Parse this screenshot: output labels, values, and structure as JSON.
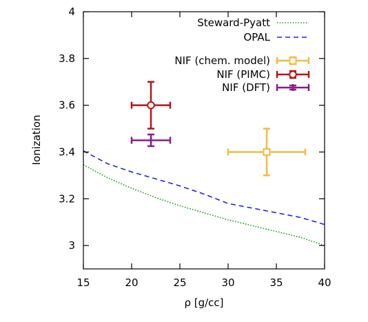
{
  "chart_data": {
    "type": "line",
    "title": "",
    "xlabel": "ρ [g/cc]",
    "ylabel": "Ionization",
    "xlim": [
      15,
      40
    ],
    "ylim": [
      2.9,
      4.0
    ],
    "x_ticks": [
      "15",
      "20",
      "25",
      "30",
      "35",
      "40"
    ],
    "y_ticks": [
      "3",
      "3.2",
      "3.4",
      "3.6",
      "3.8",
      "4"
    ],
    "x_tick_values": [
      15,
      20,
      25,
      30,
      35,
      40
    ],
    "y_tick_values": [
      3.0,
      3.2,
      3.4,
      3.6,
      3.8,
      4.0
    ],
    "grid": false,
    "legend_position": "top-right",
    "lines": [
      {
        "name": "Steward-Pyatt",
        "color": "#1a9a1a",
        "dash": "dotted",
        "x": [
          15,
          17.5,
          20,
          22.5,
          25,
          27.5,
          30,
          32.5,
          35,
          37.5,
          40
        ],
        "y": [
          3.345,
          3.29,
          3.245,
          3.205,
          3.17,
          3.14,
          3.11,
          3.085,
          3.06,
          3.035,
          3.0
        ]
      },
      {
        "name": "OPAL",
        "color": "#2222dd",
        "dash": "dashed",
        "x": [
          15,
          17.5,
          20,
          22.5,
          25,
          27.5,
          30,
          32.5,
          35,
          37.5,
          40
        ],
        "y": [
          3.405,
          3.35,
          3.315,
          3.285,
          3.255,
          3.22,
          3.18,
          3.16,
          3.14,
          3.12,
          3.09
        ]
      }
    ],
    "points": [
      {
        "name": "NIF (chem. model)",
        "color": "#f5b942",
        "marker": "square",
        "x": 34,
        "y": 3.4,
        "xerr": 4,
        "yerr": 0.1
      },
      {
        "name": "NIF (PIMC)",
        "color": "#b81414",
        "marker": "circle",
        "x": 22,
        "y": 3.6,
        "xerr": 2,
        "yerr": 0.1
      },
      {
        "name": "NIF (DFT)",
        "color": "#8a1a8a",
        "marker": "plus",
        "x": 22,
        "y": 3.45,
        "xerr": 2,
        "yerr": 0.025
      }
    ]
  }
}
